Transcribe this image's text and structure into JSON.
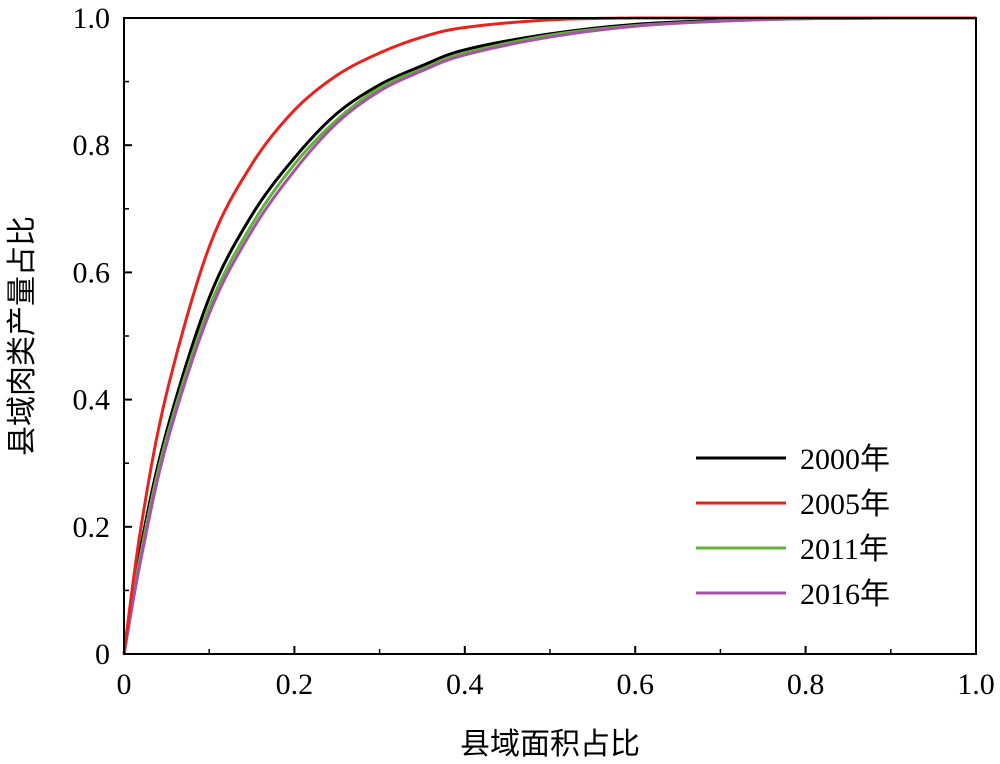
{
  "chart_data": {
    "type": "line",
    "title": "",
    "xlabel": "县域面积占比",
    "ylabel": "县域肉类产量占比",
    "xlim": [
      0,
      1.0
    ],
    "ylim": [
      0,
      1.0
    ],
    "x_ticks": [
      0,
      0.2,
      0.4,
      0.6,
      0.8,
      1.0
    ],
    "x_tick_labels": [
      "0",
      "0.2",
      "0.4",
      "0.6",
      "0.8",
      "1.0"
    ],
    "y_ticks": [
      0,
      0.2,
      0.4,
      0.6,
      0.8,
      1.0
    ],
    "y_tick_labels": [
      "0",
      "0.2",
      "0.4",
      "0.6",
      "0.8",
      "1.0"
    ],
    "grid": false,
    "legend_position": "lower-right",
    "x": [
      0,
      0.02,
      0.05,
      0.1,
      0.15,
      0.2,
      0.25,
      0.3,
      0.35,
      0.4,
      0.5,
      0.6,
      0.7,
      0.8,
      0.9,
      1.0
    ],
    "series": [
      {
        "name": "2000年",
        "color": "#000000",
        "values": [
          0,
          0.17,
          0.35,
          0.56,
          0.69,
          0.78,
          0.85,
          0.895,
          0.925,
          0.95,
          0.975,
          0.99,
          0.996,
          0.999,
          1.0,
          1.0
        ]
      },
      {
        "name": "2005年",
        "color": "#e8231e",
        "values": [
          0,
          0.2,
          0.41,
          0.64,
          0.77,
          0.855,
          0.91,
          0.945,
          0.97,
          0.985,
          0.997,
          1.0,
          1.0,
          1.0,
          1.0,
          1.0
        ]
      },
      {
        "name": "2011年",
        "color": "#5fb336",
        "values": [
          0,
          0.16,
          0.34,
          0.545,
          0.675,
          0.77,
          0.84,
          0.89,
          0.92,
          0.945,
          0.973,
          0.988,
          0.995,
          0.999,
          1.0,
          1.0
        ]
      },
      {
        "name": "2016年",
        "color": "#a752a8",
        "values": [
          0,
          0.15,
          0.33,
          0.535,
          0.665,
          0.76,
          0.835,
          0.885,
          0.917,
          0.942,
          0.97,
          0.987,
          0.995,
          0.999,
          1.0,
          1.0
        ]
      }
    ]
  }
}
